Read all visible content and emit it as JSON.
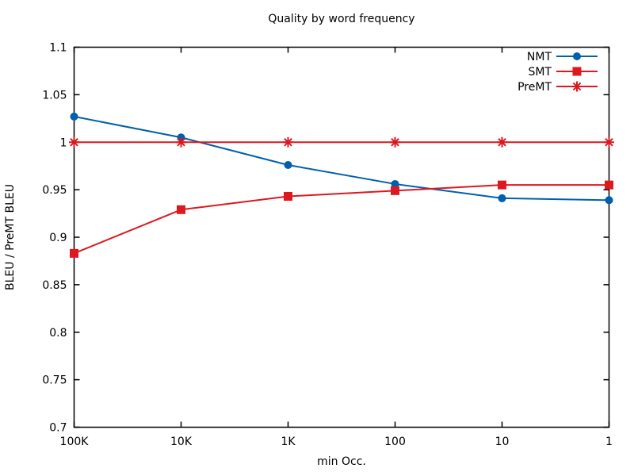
{
  "page": {
    "background": "#ffffff",
    "text_color": "#000000",
    "border_color": "#000000"
  },
  "chart_data": {
    "type": "line",
    "title": "Quality by word frequency",
    "xlabel": "min Occ.",
    "ylabel": "BLEU / PreMT BLEU",
    "categories": [
      "100K",
      "10K",
      "1K",
      "100",
      "10",
      "1"
    ],
    "x_scale_note": "log-scale decades, descending left to right",
    "ylim": [
      0.7,
      1.1
    ],
    "ytick_labels": [
      "0.7",
      "0.75",
      "0.8",
      "0.85",
      "0.9",
      "0.95",
      "1",
      "1.05",
      "1.1"
    ],
    "grid": false,
    "legend_position": "top-right-inside",
    "series": [
      {
        "name": "NMT",
        "color": "#0060ad",
        "marker": "circle",
        "values": [
          1.027,
          1.005,
          0.976,
          0.956,
          0.941,
          0.939
        ]
      },
      {
        "name": "SMT",
        "color": "#dd181f",
        "marker": "square",
        "values": [
          0.883,
          0.929,
          0.943,
          0.949,
          0.955,
          0.955
        ]
      },
      {
        "name": "PreMT",
        "color": "#dd181f",
        "marker": "asterisk",
        "values": [
          1.0,
          1.0,
          1.0,
          1.0,
          1.0,
          1.0
        ]
      }
    ]
  }
}
